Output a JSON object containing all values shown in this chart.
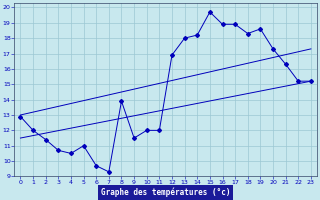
{
  "bg_color": "#c8e8ee",
  "line_color": "#0000bb",
  "xlim": [
    -0.5,
    23.5
  ],
  "ylim": [
    9,
    20.3
  ],
  "xticks": [
    0,
    1,
    2,
    3,
    4,
    5,
    6,
    7,
    8,
    9,
    10,
    11,
    12,
    13,
    14,
    15,
    16,
    17,
    18,
    19,
    20,
    21,
    22,
    23
  ],
  "yticks": [
    9,
    10,
    11,
    12,
    13,
    14,
    15,
    16,
    17,
    18,
    19,
    20
  ],
  "xlabel": "Graphe des températures (°c)",
  "main_x": [
    0,
    1,
    2,
    3,
    4,
    5,
    6,
    7,
    8,
    9,
    10,
    11,
    12,
    13,
    14,
    15,
    16,
    17,
    18,
    19,
    20,
    21,
    22,
    23
  ],
  "main_y": [
    12.9,
    12.0,
    11.4,
    10.7,
    10.5,
    11.0,
    9.7,
    9.3,
    13.9,
    11.5,
    12.0,
    12.0,
    16.9,
    18.0,
    18.2,
    19.7,
    18.9,
    18.9,
    18.3,
    18.6,
    17.3,
    16.3,
    15.2,
    15.2
  ],
  "upper_line_x": [
    0,
    23
  ],
  "upper_line_y": [
    13.0,
    17.3
  ],
  "lower_line_x": [
    0,
    23
  ],
  "lower_line_y": [
    11.5,
    15.2
  ],
  "grid_color": "#9cc8d4",
  "xlabel_bg": "#1a1a99"
}
